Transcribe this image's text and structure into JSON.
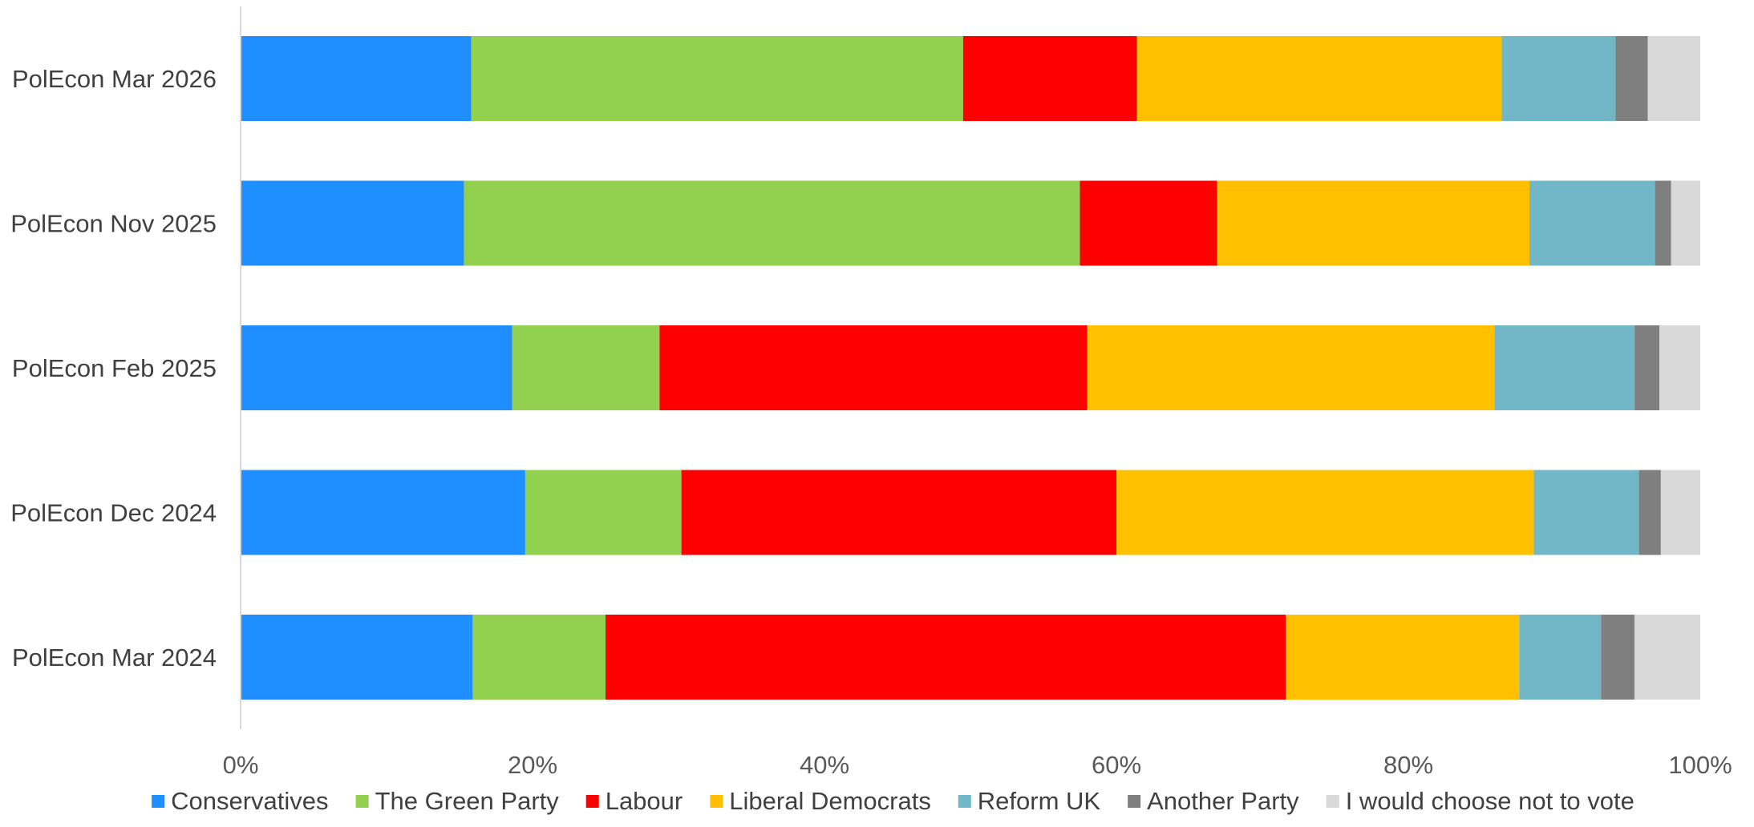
{
  "chart_data": {
    "type": "bar",
    "orientation": "horizontal",
    "stacked": "percent",
    "title": "",
    "xlabel": "",
    "ylabel": "",
    "xlim": [
      0,
      100
    ],
    "x_ticks": [
      "0%",
      "20%",
      "40%",
      "60%",
      "80%",
      "100%"
    ],
    "grid": false,
    "legend_position": "bottom",
    "categories": [
      "PolEcon Mar 2026",
      "PolEcon Nov 2025",
      "PolEcon Feb 2025",
      "PolEcon Dec 2024",
      "PolEcon Mar 2024"
    ],
    "series": [
      {
        "name": "Conservatives",
        "color": "#1f8fff",
        "values": [
          15.8,
          15.3,
          18.6,
          19.5,
          15.9
        ]
      },
      {
        "name": "The Green Party",
        "color": "#92d050",
        "values": [
          33.7,
          42.2,
          10.1,
          10.7,
          9.1
        ]
      },
      {
        "name": "Labour",
        "color": "#ff0000",
        "values": [
          11.9,
          9.4,
          29.3,
          29.8,
          46.6
        ]
      },
      {
        "name": "Liberal Democrats",
        "color": "#ffc000",
        "values": [
          25.0,
          21.4,
          27.9,
          28.6,
          16.0
        ]
      },
      {
        "name": "Reform UK",
        "color": "#72b7c8",
        "values": [
          7.8,
          8.6,
          9.6,
          7.2,
          5.6
        ]
      },
      {
        "name": "Another Party",
        "color": "#7f7f7f",
        "values": [
          2.2,
          1.1,
          1.7,
          1.5,
          2.3
        ]
      },
      {
        "name": "I would choose not to vote",
        "color": "#d9d9d9",
        "values": [
          3.6,
          2.0,
          2.8,
          2.7,
          4.5
        ]
      }
    ]
  }
}
